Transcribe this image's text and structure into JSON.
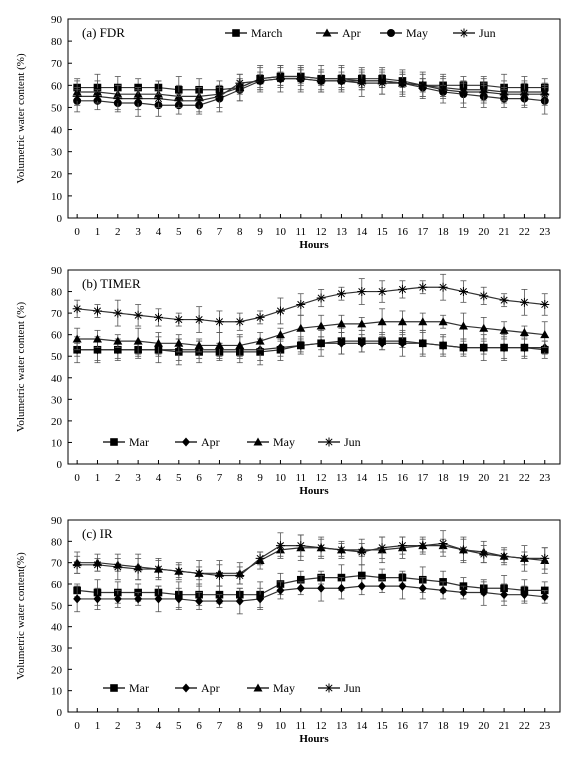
{
  "chart_data": [
    {
      "type": "line",
      "panel_label": "(a) FDR",
      "xlabel": "Hours",
      "ylabel": "Volumetric water content (%)",
      "ylim": [
        0,
        90
      ],
      "yticks": [
        0,
        10,
        20,
        30,
        40,
        50,
        60,
        70,
        80,
        90
      ],
      "x": [
        0,
        1,
        2,
        3,
        4,
        5,
        6,
        7,
        8,
        9,
        10,
        11,
        12,
        13,
        14,
        15,
        16,
        17,
        18,
        19,
        20,
        21,
        22,
        23
      ],
      "legend_position": "top-right",
      "series": [
        {
          "name": "March",
          "marker": "square",
          "values": [
            59,
            59,
            59,
            59,
            59,
            58,
            58,
            58,
            59,
            63,
            64,
            64,
            63,
            63,
            63,
            63,
            62,
            60,
            60,
            60,
            60,
            59,
            59,
            59
          ]
        },
        {
          "name": "Apr",
          "marker": "triangle",
          "values": [
            57,
            57,
            56,
            56,
            56,
            55,
            55,
            56,
            59,
            63,
            64,
            64,
            63,
            63,
            62,
            62,
            61,
            60,
            59,
            58,
            58,
            57,
            57,
            57
          ]
        },
        {
          "name": "May",
          "marker": "circle",
          "values": [
            53,
            53,
            52,
            52,
            51,
            51,
            51,
            54,
            58,
            62,
            63,
            63,
            62,
            62,
            62,
            62,
            61,
            59,
            57,
            56,
            55,
            54,
            54,
            53
          ]
        },
        {
          "name": "Jun",
          "marker": "star",
          "values": [
            55,
            55,
            54,
            54,
            54,
            53,
            53,
            55,
            61,
            62,
            63,
            63,
            62,
            62,
            61,
            61,
            61,
            60,
            58,
            57,
            57,
            56,
            56,
            56
          ]
        }
      ]
    },
    {
      "type": "line",
      "panel_label": "(b) TIMER",
      "xlabel": "Hours",
      "ylabel": "Volumetric water content (%)",
      "ylim": [
        0,
        90
      ],
      "yticks": [
        0,
        10,
        20,
        30,
        40,
        50,
        60,
        70,
        80,
        90
      ],
      "x": [
        0,
        1,
        2,
        3,
        4,
        5,
        6,
        7,
        8,
        9,
        10,
        11,
        12,
        13,
        14,
        15,
        16,
        17,
        18,
        19,
        20,
        21,
        22,
        23
      ],
      "legend_position": "bottom-left",
      "series": [
        {
          "name": "Mar",
          "marker": "square",
          "values": [
            53,
            53,
            53,
            53,
            53,
            52,
            52,
            52,
            52,
            52,
            53,
            55,
            56,
            57,
            57,
            57,
            57,
            56,
            55,
            54,
            54,
            54,
            54,
            53
          ]
        },
        {
          "name": "Apr",
          "marker": "diamond",
          "values": [
            53,
            53,
            53,
            53,
            53,
            53,
            53,
            53,
            53,
            53,
            54,
            55,
            56,
            56,
            56,
            56,
            56,
            56,
            55,
            54,
            54,
            54,
            54,
            54
          ]
        },
        {
          "name": "May",
          "marker": "triangle",
          "values": [
            58,
            58,
            57,
            57,
            56,
            56,
            55,
            55,
            55,
            57,
            60,
            63,
            64,
            65,
            65,
            66,
            66,
            66,
            66,
            64,
            63,
            62,
            61,
            60
          ]
        },
        {
          "name": "Jun",
          "marker": "star",
          "values": [
            72,
            71,
            70,
            69,
            68,
            67,
            67,
            66,
            66,
            68,
            71,
            74,
            77,
            79,
            80,
            80,
            81,
            82,
            82,
            80,
            78,
            76,
            75,
            74
          ]
        }
      ]
    },
    {
      "type": "line",
      "panel_label": "(c) IR",
      "xlabel": "Hours",
      "ylabel": "Volumetric water content(%)",
      "ylim": [
        0,
        90
      ],
      "yticks": [
        0,
        10,
        20,
        30,
        40,
        50,
        60,
        70,
        80,
        90
      ],
      "x": [
        0,
        1,
        2,
        3,
        4,
        5,
        6,
        7,
        8,
        9,
        10,
        11,
        12,
        13,
        14,
        15,
        16,
        17,
        18,
        19,
        20,
        21,
        22,
        23
      ],
      "legend_position": "bottom-left",
      "series": [
        {
          "name": "Mar",
          "marker": "square",
          "values": [
            57,
            56,
            56,
            56,
            56,
            55,
            55,
            55,
            55,
            55,
            60,
            62,
            63,
            63,
            64,
            63,
            63,
            62,
            61,
            59,
            58,
            58,
            57,
            57
          ]
        },
        {
          "name": "Apr",
          "marker": "diamond",
          "values": [
            53,
            53,
            53,
            53,
            53,
            53,
            52,
            52,
            52,
            53,
            57,
            58,
            58,
            58,
            59,
            59,
            59,
            58,
            57,
            56,
            56,
            55,
            55,
            54
          ]
        },
        {
          "name": "May",
          "marker": "triangle",
          "values": [
            70,
            70,
            69,
            68,
            67,
            66,
            65,
            65,
            65,
            71,
            76,
            77,
            77,
            76,
            76,
            76,
            77,
            78,
            78,
            76,
            75,
            73,
            72,
            71
          ]
        },
        {
          "name": "Jun",
          "marker": "star",
          "values": [
            69,
            69,
            68,
            67,
            67,
            66,
            65,
            64,
            64,
            72,
            78,
            78,
            77,
            76,
            75,
            77,
            78,
            78,
            79,
            76,
            74,
            73,
            72,
            72
          ]
        }
      ]
    }
  ]
}
